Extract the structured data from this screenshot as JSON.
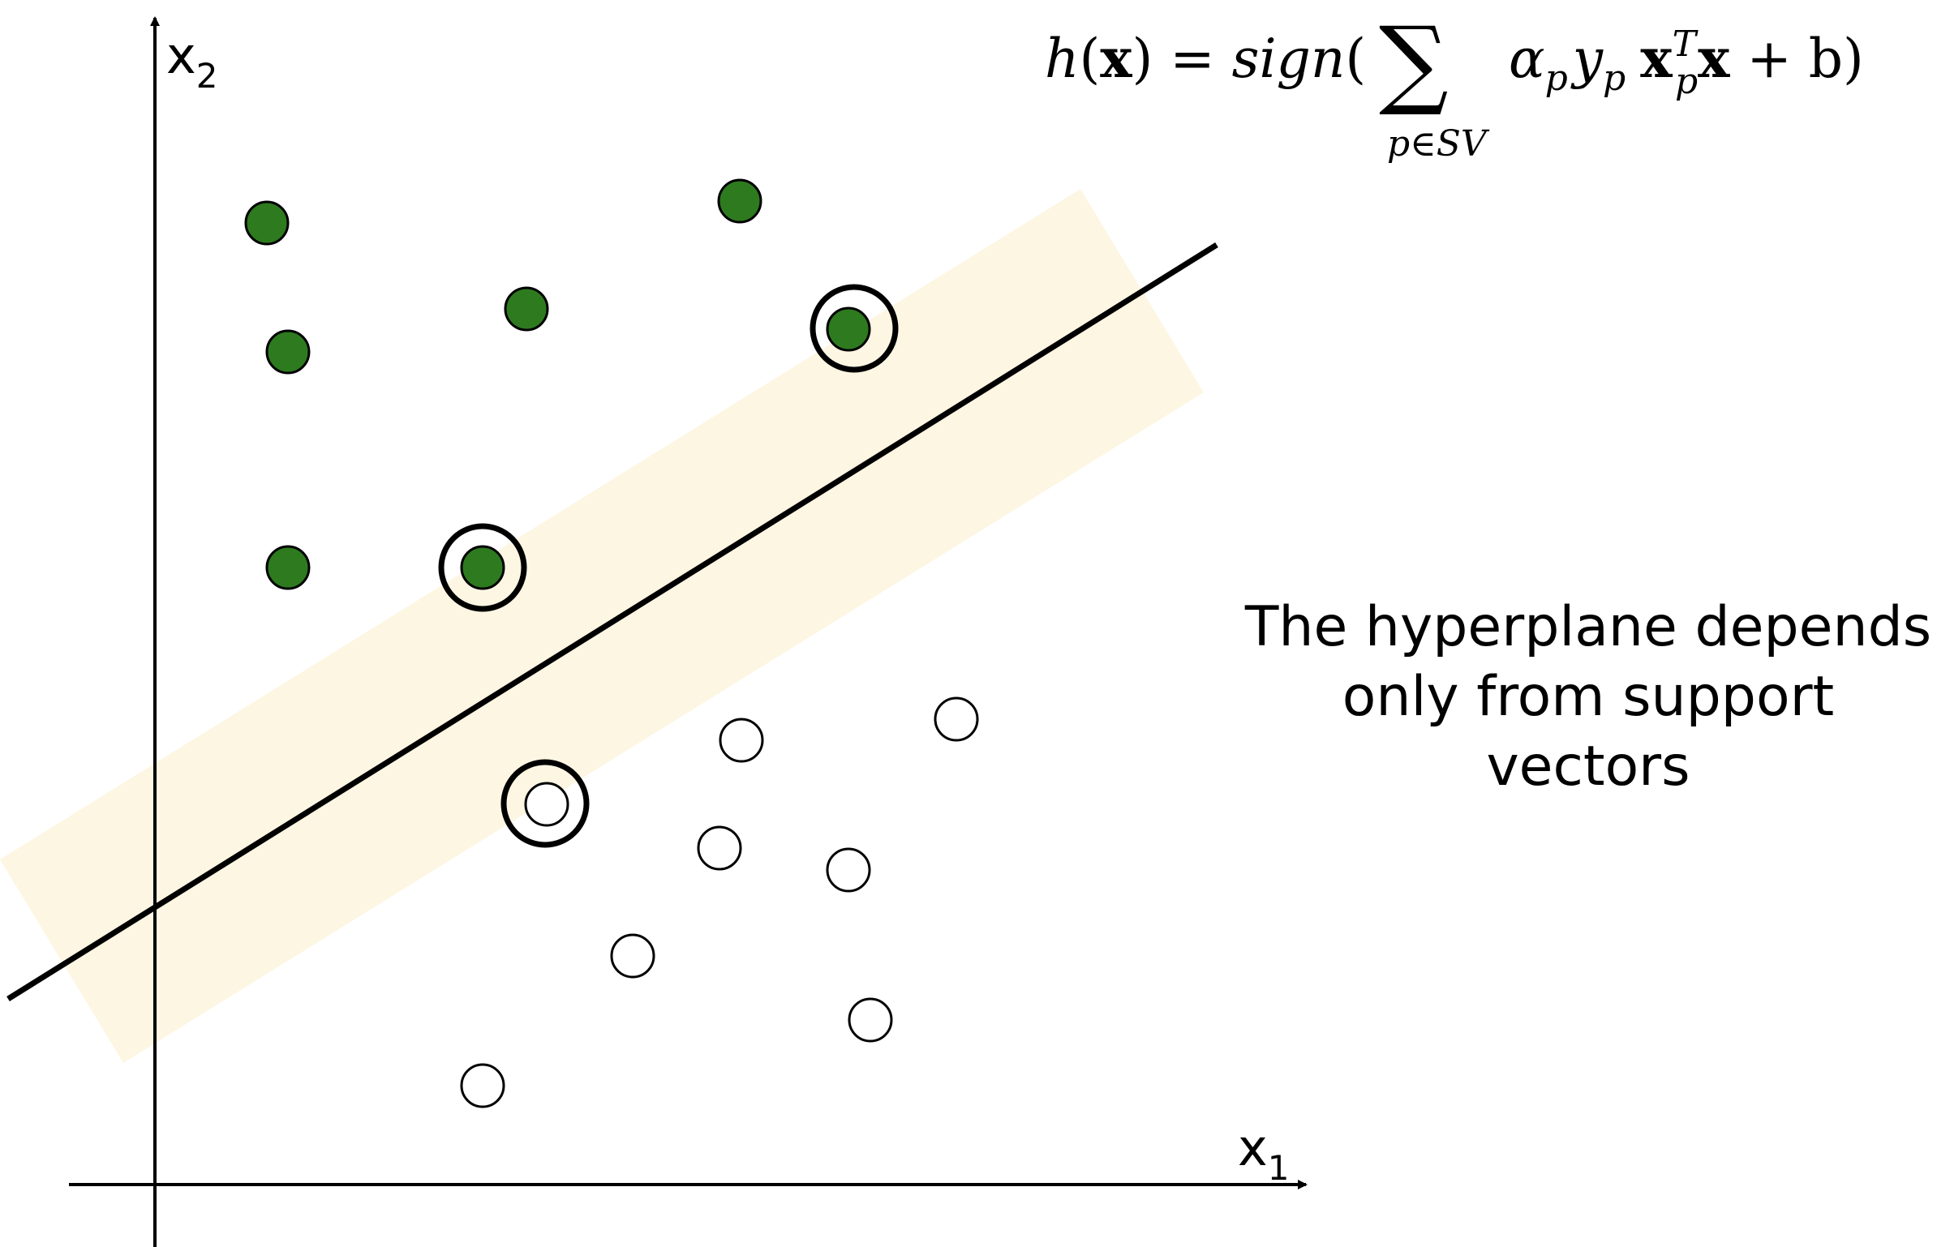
{
  "axes": {
    "x_label": "x",
    "x_subscript": "1",
    "y_label": "x",
    "y_subscript": "2"
  },
  "formula": {
    "h": "h",
    "open_paren": "(",
    "x_bold": "x",
    "eq_sign": ") = ",
    "sign": "sign",
    "sign_paren": "(",
    "sum_symbol": "∑",
    "sum_subscript": "p∈SV",
    "alpha": "α",
    "alpha_sub": "p",
    "y": "y",
    "y_sub": "p",
    "x_bold_2": "x",
    "x2_sup": "T",
    "x2_sub": "p",
    "x_bold_3": "x",
    "plus_b": " + b)"
  },
  "caption": {
    "line1": "The hyperplane depends",
    "line2": "only from support",
    "line3": "vectors"
  },
  "colors": {
    "positive_fill": "#2e7a1f",
    "negative_fill": "#ffffff",
    "margin_band": "#fdf6e3",
    "line": "#000000"
  },
  "points": {
    "positive": [
      {
        "support_vector": false
      },
      {
        "support_vector": false
      },
      {
        "support_vector": false
      },
      {
        "support_vector": false
      },
      {
        "support_vector": true
      },
      {
        "support_vector": false
      },
      {
        "support_vector": true
      }
    ],
    "negative": [
      {
        "support_vector": true
      },
      {
        "support_vector": false
      },
      {
        "support_vector": false
      },
      {
        "support_vector": false
      },
      {
        "support_vector": false
      },
      {
        "support_vector": false
      },
      {
        "support_vector": false
      },
      {
        "support_vector": false
      }
    ]
  }
}
